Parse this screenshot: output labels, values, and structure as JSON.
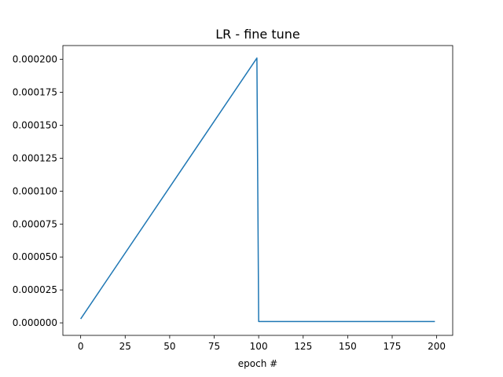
{
  "chart_data": {
    "type": "line",
    "title": "LR - fine tune",
    "xlabel": "epoch #",
    "ylabel": "",
    "xlim": [
      -10,
      209
    ],
    "ylim": [
      -9.5e-06,
      0.0002105
    ],
    "xticks": [
      0,
      25,
      50,
      75,
      100,
      125,
      150,
      175,
      200
    ],
    "xtick_labels": [
      "0",
      "25",
      "50",
      "75",
      "100",
      "125",
      "150",
      "175",
      "200"
    ],
    "yticks": [
      0,
      2.5e-05,
      5e-05,
      7.5e-05,
      0.0001,
      0.000125,
      0.00015,
      0.000175,
      0.0002
    ],
    "ytick_labels": [
      "0.000000",
      "0.000025",
      "0.000050",
      "0.000075",
      "0.000100",
      "0.000125",
      "0.000150",
      "0.000175",
      "0.000200"
    ],
    "grid": false,
    "series": [
      {
        "color": "#1f77b4",
        "x": [
          0,
          99,
          100,
          199
        ],
        "y": [
          3e-06,
          0.000201,
          1e-06,
          1e-06
        ]
      }
    ]
  }
}
